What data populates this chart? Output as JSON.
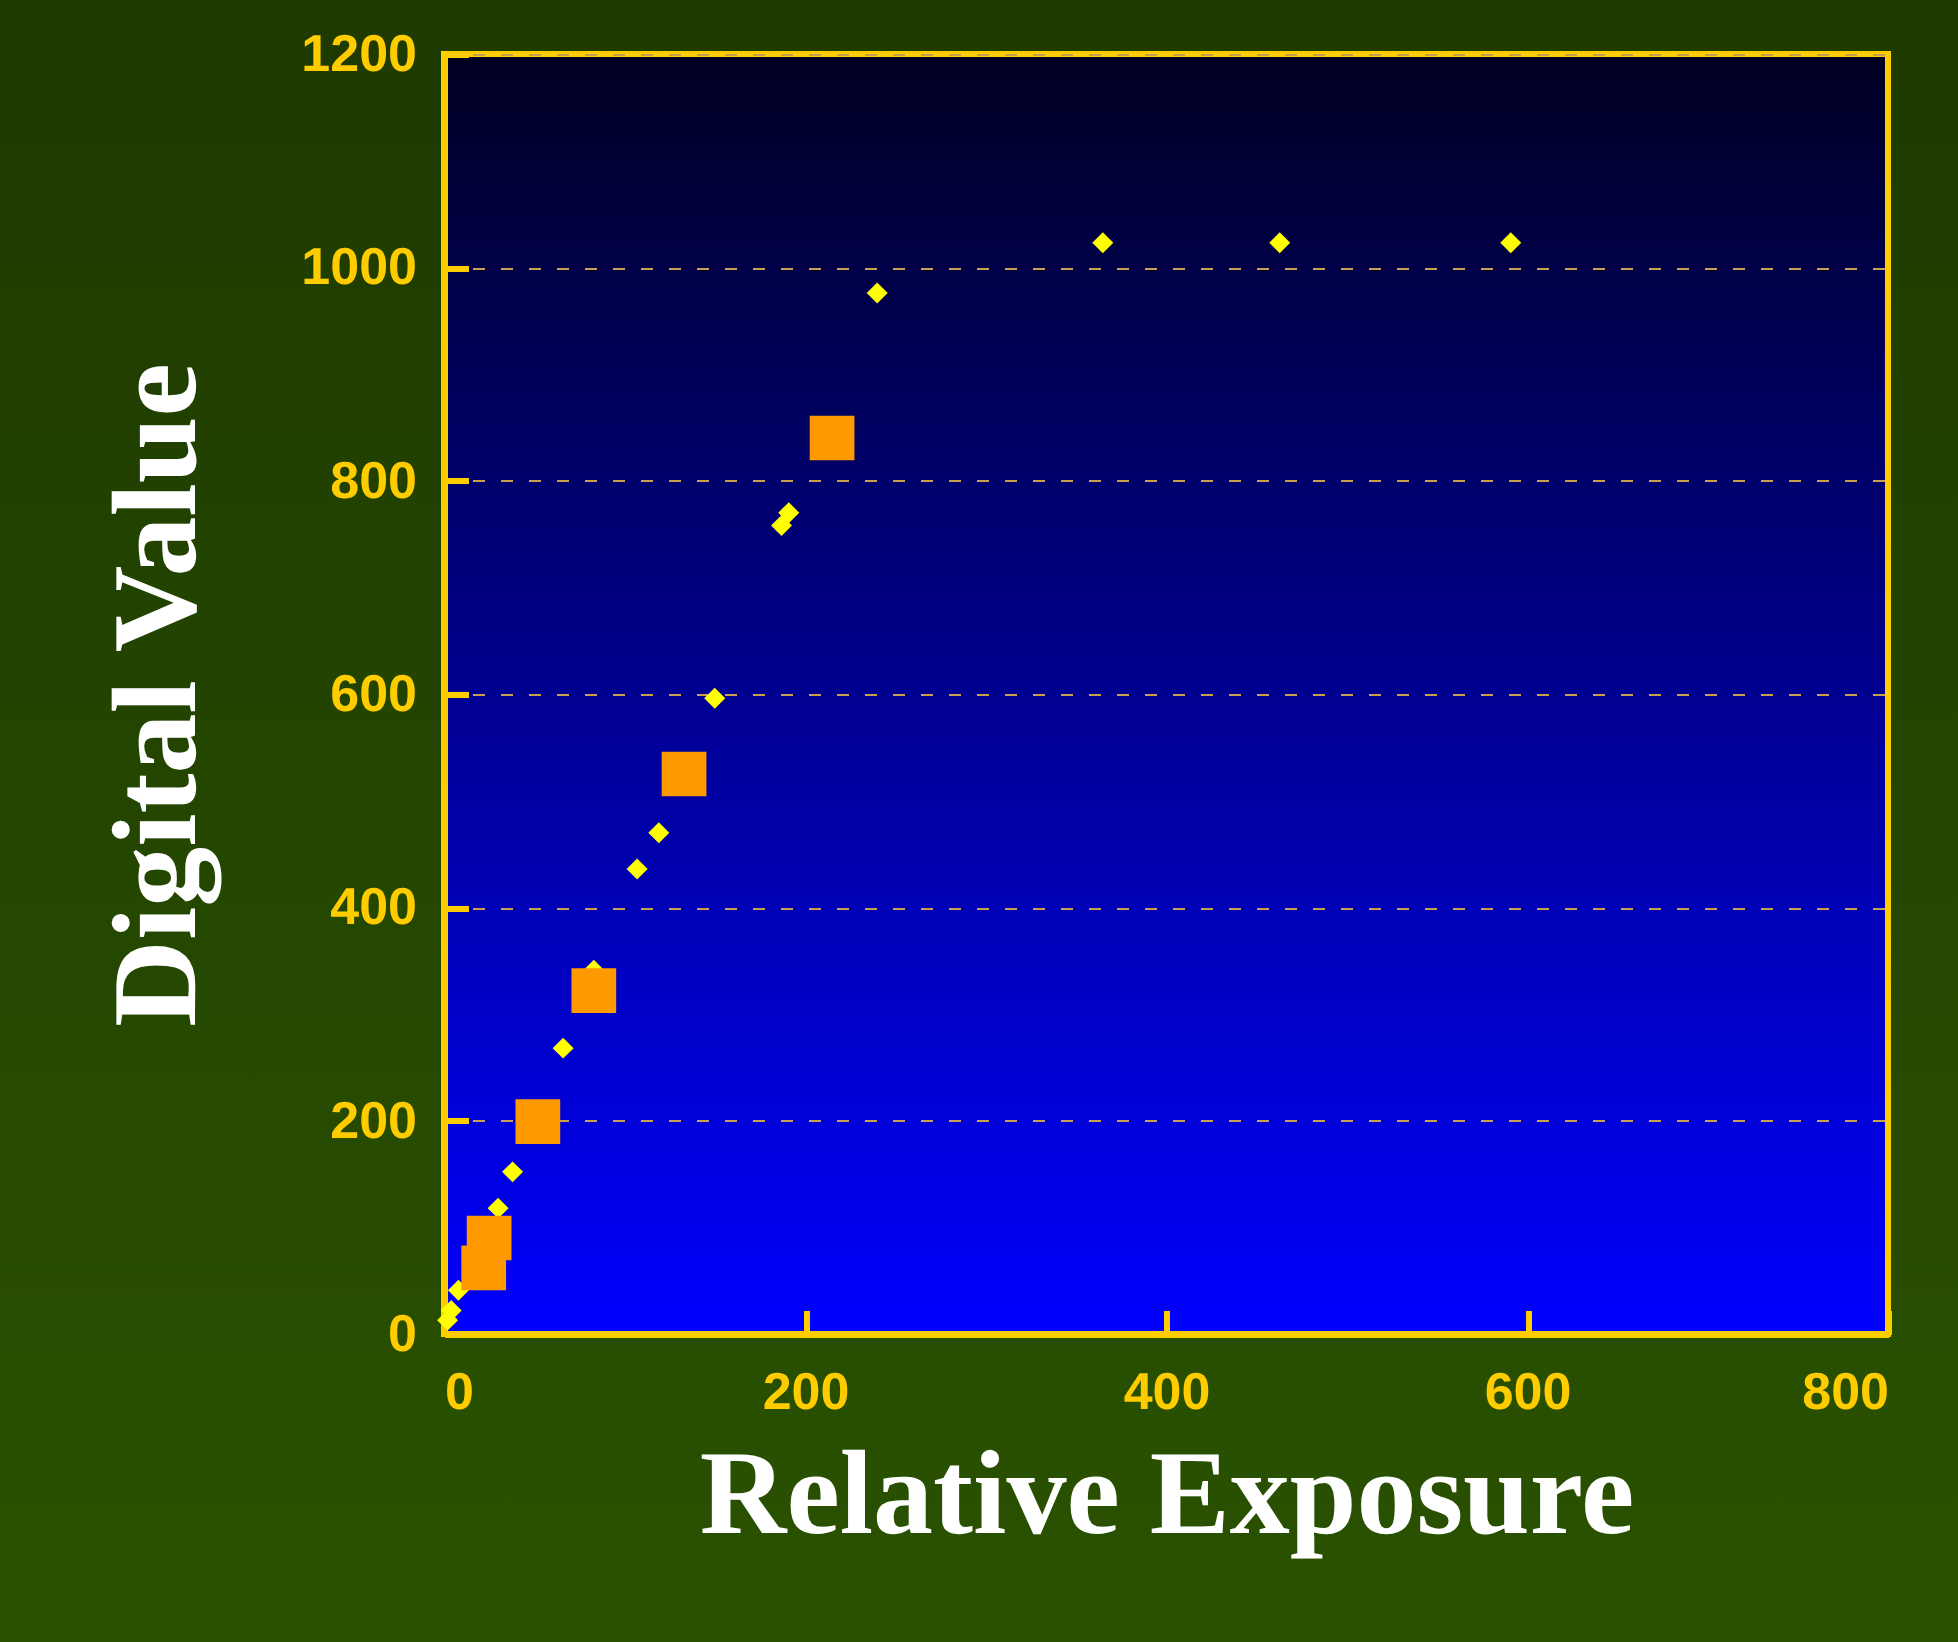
{
  "chart_data": {
    "type": "scatter",
    "xlabel": "Relative Exposure",
    "ylabel": "Digital Value",
    "xlim": [
      0,
      800
    ],
    "xticks": [
      0,
      200,
      400,
      600,
      800
    ],
    "ylim": [
      0,
      1200
    ],
    "yticks": [
      0,
      200,
      400,
      600,
      800,
      1000,
      1200
    ],
    "grid": "y",
    "series": [
      {
        "color": "#ffff00",
        "marker": "diamond",
        "x": [
          2,
          4,
          8,
          30,
          38,
          66,
          83,
          107,
          119,
          150,
          187,
          191,
          240,
          365,
          463,
          591
        ],
        "values": [
          13,
          22,
          41,
          118,
          152,
          268,
          341,
          436,
          470,
          596,
          758,
          770,
          976,
          1023,
          1023,
          1023
        ]
      },
      {
        "color": "#ff9900",
        "marker": "square",
        "x": [
          22,
          25,
          52,
          83,
          133,
          215
        ],
        "values": [
          62,
          90,
          199,
          322,
          525,
          840
        ]
      }
    ]
  }
}
